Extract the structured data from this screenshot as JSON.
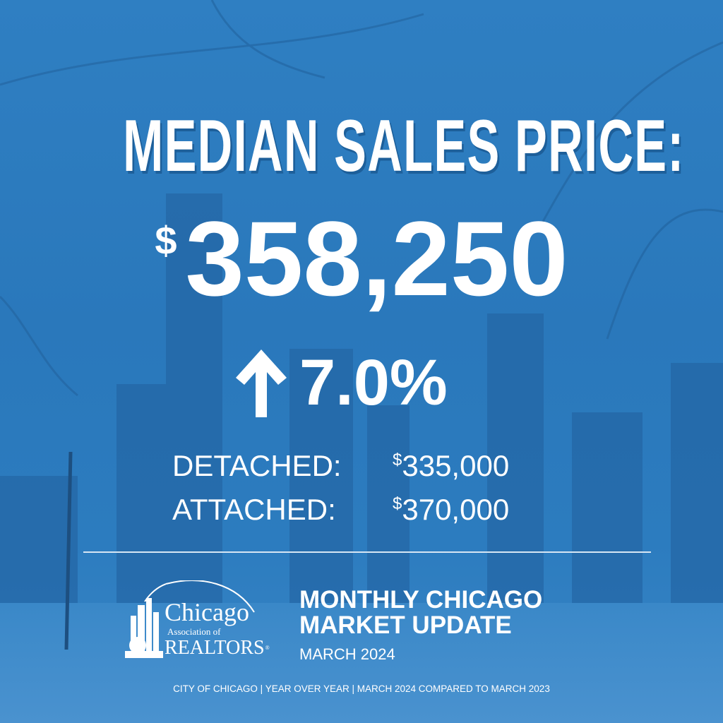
{
  "headline": "MEDIAN SALES PRICE:",
  "price": {
    "currency": "$",
    "value": "358,250"
  },
  "change": {
    "direction": "up",
    "icon": "arrow-up-icon",
    "value": "7.0%"
  },
  "breakdown": [
    {
      "label": "DETACHED:",
      "currency": "$",
      "value": "335,000"
    },
    {
      "label": "ATTACHED:",
      "currency": "$",
      "value": "370,000"
    }
  ],
  "logo": {
    "line1": "Chicago",
    "line2": "Association of",
    "line3": "REALTORS",
    "mark": "®"
  },
  "update": {
    "line1": "MONTHLY CHICAGO",
    "line2": "MARKET UPDATE",
    "period": "MARCH 2024"
  },
  "footer": "CITY OF CHICAGO | YEAR OVER YEAR | MARCH 2024 COMPARED TO MARCH 2023",
  "colors": {
    "background": "#2c7cbf",
    "text": "#ffffff"
  }
}
